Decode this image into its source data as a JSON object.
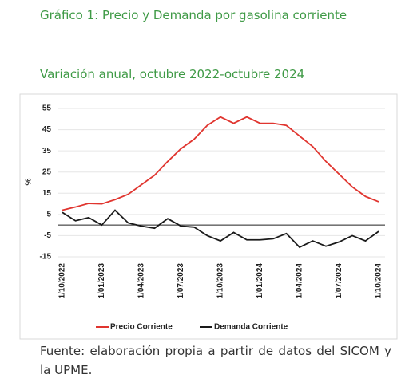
{
  "document": {
    "heading": "Gráfico 1: Precio y Demanda por gasolina corriente",
    "subheading": "Variación anual, octubre 2022-octubre 2024",
    "source": "Fuente: elaboración propia a partir de datos del SICOM y la UPME."
  },
  "chart_data": {
    "type": "line",
    "ylabel": "%",
    "categories": [
      "1/10/2022",
      null,
      null,
      "1/01/2023",
      null,
      null,
      "1/04/2023",
      null,
      null,
      "1/07/2023",
      null,
      null,
      "1/10/2023",
      null,
      null,
      "1/01/2024",
      null,
      null,
      "1/04/2024",
      null,
      null,
      "1/07/2024",
      null,
      null,
      "1/10/2024"
    ],
    "series": [
      {
        "name": "Precio Corriente",
        "color": "#e0352f",
        "values": [
          7,
          8.5,
          10.2,
          10,
          12,
          14.5,
          19,
          23.5,
          30,
          36,
          40.5,
          47,
          51,
          48,
          51,
          48,
          48,
          47,
          42,
          37,
          30,
          24,
          18,
          13.5,
          11
        ]
      },
      {
        "name": "Demanda Corriente",
        "color": "#1a1a1a",
        "values": [
          6,
          2,
          3.5,
          0,
          7,
          1,
          -0.5,
          -1.5,
          3,
          -0.5,
          -1,
          -5,
          -7.5,
          -3.5,
          -7,
          -7,
          -6.5,
          -4,
          -10.5,
          -7.5,
          -10,
          -8,
          -5,
          -7.5,
          -3
        ]
      }
    ],
    "ylim": [
      -15,
      55
    ],
    "yticks": [
      55,
      45,
      35,
      25,
      15,
      5,
      -5,
      -15
    ],
    "grid": true,
    "legend": "bottom"
  }
}
